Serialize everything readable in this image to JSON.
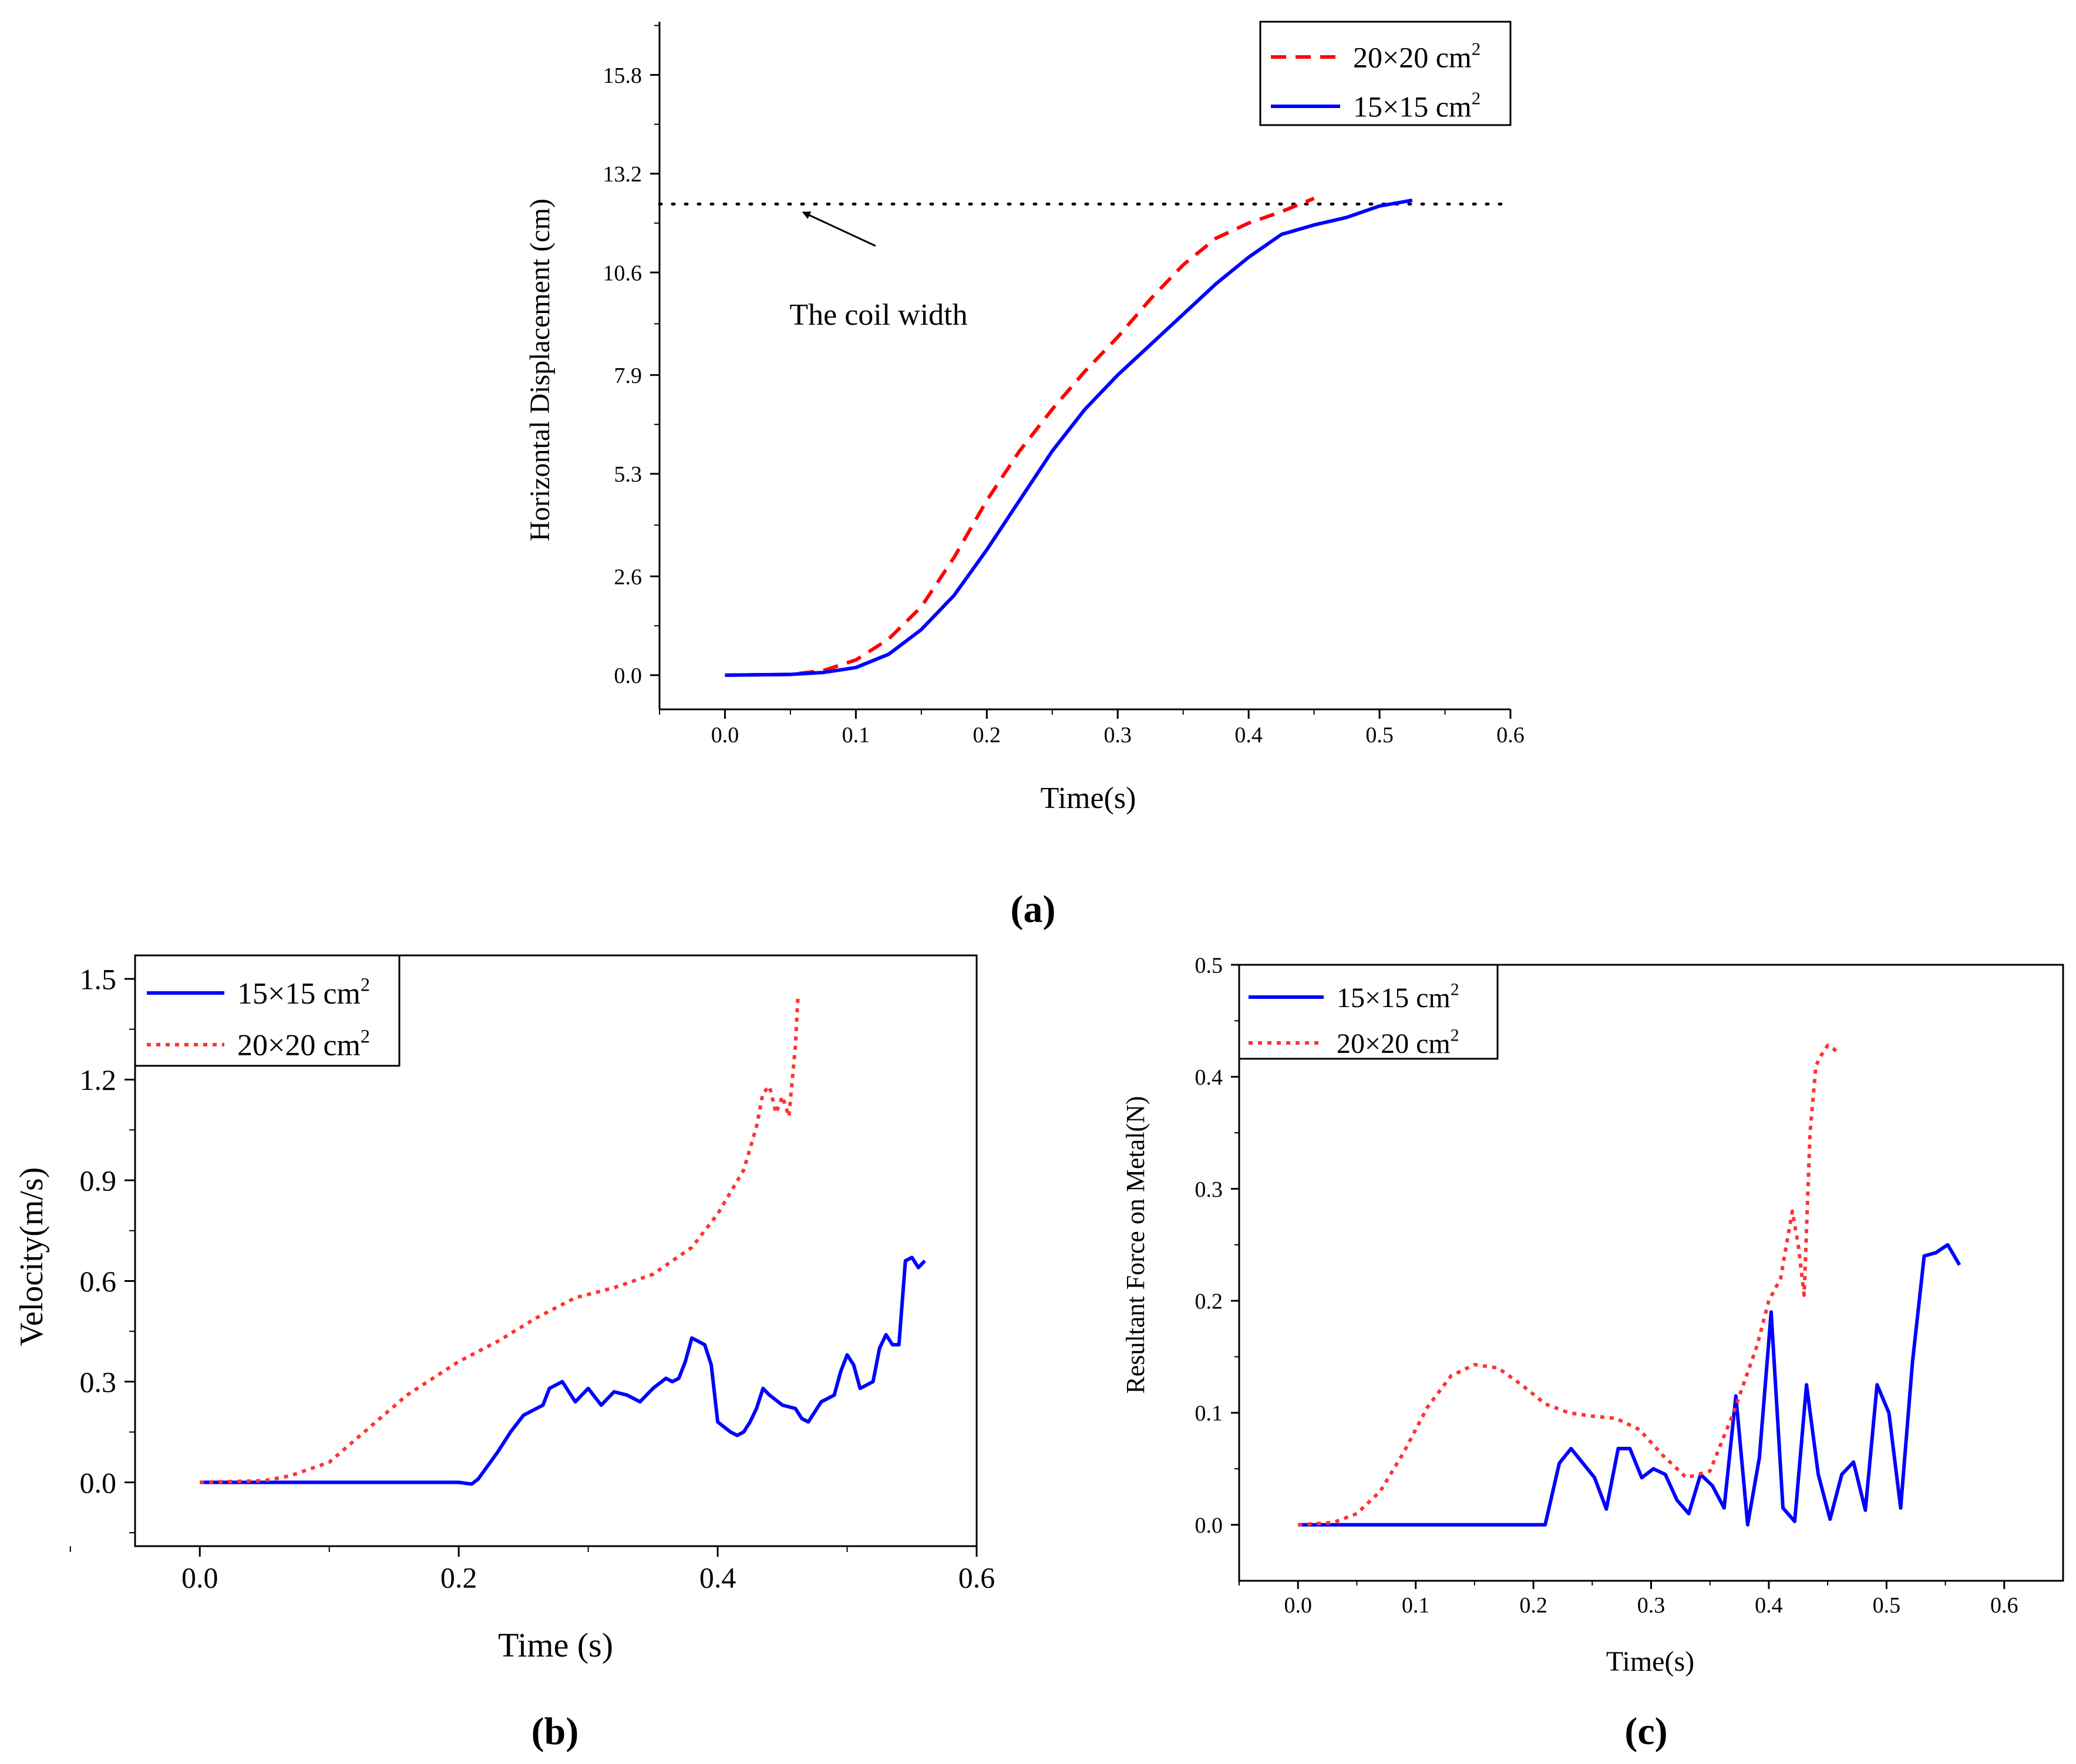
{
  "chart_data": [
    {
      "id": "a",
      "type": "line",
      "panel_label": "a",
      "title": "",
      "xlabel": "Time(s)",
      "ylabel": "Horizontal Displacement (cm)",
      "xlim": [
        -0.05,
        0.6
      ],
      "ylim": [
        -0.9,
        17.2
      ],
      "xticks": [
        0.0,
        0.1,
        0.2,
        0.3,
        0.4,
        0.5,
        0.6
      ],
      "xtick_labels": [
        "0.0",
        "0.1",
        "0.2",
        "0.3",
        "0.4",
        "0.5",
        "0.6"
      ],
      "yticks": [
        0.0,
        2.6,
        5.3,
        7.9,
        10.6,
        13.2,
        15.8
      ],
      "ytick_labels": [
        "0.0",
        "2.6",
        "5.3",
        "7.9",
        "10.6",
        "13.2",
        "15.8"
      ],
      "legend_position": "top-right",
      "series": [
        {
          "name": "20×20 cm",
          "superscript": "2",
          "color": "#ff0000",
          "style": "dashed",
          "x": [
            0.0,
            0.05,
            0.075,
            0.1,
            0.125,
            0.15,
            0.175,
            0.2,
            0.225,
            0.25,
            0.275,
            0.3,
            0.325,
            0.35,
            0.375,
            0.4,
            0.425,
            0.45
          ],
          "y": [
            0.0,
            0.02,
            0.12,
            0.4,
            0.95,
            1.8,
            3.1,
            4.6,
            5.9,
            7.0,
            8.0,
            8.9,
            9.9,
            10.8,
            11.5,
            11.9,
            12.2,
            12.55
          ]
        },
        {
          "name": "15×15 cm",
          "superscript": "2",
          "color": "#0000ff",
          "style": "solid",
          "x": [
            0.0,
            0.05,
            0.075,
            0.1,
            0.125,
            0.15,
            0.175,
            0.2,
            0.225,
            0.25,
            0.275,
            0.3,
            0.325,
            0.35,
            0.375,
            0.4,
            0.425,
            0.45,
            0.475,
            0.5,
            0.525
          ],
          "y": [
            0.0,
            0.02,
            0.07,
            0.2,
            0.55,
            1.2,
            2.1,
            3.3,
            4.6,
            5.9,
            7.0,
            7.9,
            8.7,
            9.5,
            10.3,
            11.0,
            11.6,
            11.85,
            12.05,
            12.35,
            12.5
          ]
        }
      ],
      "reference_line": {
        "y": 12.4,
        "style": "dotted",
        "color": "#000000"
      },
      "annotation": {
        "text": "The coil width",
        "arrow_to": [
          0.057,
          12.4
        ],
        "text_at": [
          0.115,
          11.3
        ]
      }
    },
    {
      "id": "b",
      "type": "line",
      "panel_label": "b",
      "title": "",
      "xlabel": "Time (s)",
      "ylabel": "Velocity(m/s)",
      "xlim": [
        -0.05,
        0.6
      ],
      "ylim": [
        -0.19,
        1.57
      ],
      "xticks": [
        0.0,
        0.2,
        0.4,
        0.6
      ],
      "xtick_labels": [
        "0.0",
        "0.2",
        "0.4",
        "0.6"
      ],
      "yticks": [
        0.0,
        0.3,
        0.6,
        0.9,
        1.2,
        1.5
      ],
      "ytick_labels": [
        "0.0",
        "0.3",
        "0.6",
        "0.9",
        "1.2",
        "1.5"
      ],
      "legend_position": "top-left",
      "series": [
        {
          "name": "15×15 cm",
          "superscript": "2",
          "color": "#0000ff",
          "style": "solid",
          "x": [
            0.0,
            0.1,
            0.2,
            0.21,
            0.215,
            0.23,
            0.24,
            0.25,
            0.26,
            0.265,
            0.27,
            0.28,
            0.29,
            0.3,
            0.31,
            0.32,
            0.33,
            0.34,
            0.345,
            0.35,
            0.36,
            0.365,
            0.37,
            0.375,
            0.38,
            0.39,
            0.395,
            0.4,
            0.41,
            0.415,
            0.42,
            0.425,
            0.43,
            0.435,
            0.44,
            0.45,
            0.46,
            0.465,
            0.47,
            0.48,
            0.49,
            0.495,
            0.5,
            0.505,
            0.51,
            0.52,
            0.525,
            0.53,
            0.535,
            0.54,
            0.545,
            0.55,
            0.555,
            0.56
          ],
          "y": [
            0.0,
            0.0,
            0.0,
            -0.005,
            0.01,
            0.09,
            0.15,
            0.2,
            0.22,
            0.23,
            0.28,
            0.3,
            0.24,
            0.28,
            0.23,
            0.27,
            0.26,
            0.24,
            0.26,
            0.28,
            0.31,
            0.3,
            0.31,
            0.36,
            0.43,
            0.41,
            0.35,
            0.18,
            0.15,
            0.14,
            0.15,
            0.18,
            0.22,
            0.28,
            0.26,
            0.23,
            0.22,
            0.19,
            0.18,
            0.24,
            0.26,
            0.33,
            0.38,
            0.35,
            0.28,
            0.3,
            0.4,
            0.44,
            0.41,
            0.41,
            0.66,
            0.67,
            0.64,
            0.66
          ]
        },
        {
          "name": "20×20 cm",
          "superscript": "2",
          "color": "#ff3333",
          "style": "dotted",
          "x": [
            0.0,
            0.05,
            0.07,
            0.1,
            0.13,
            0.16,
            0.2,
            0.23,
            0.26,
            0.29,
            0.32,
            0.35,
            0.38,
            0.4,
            0.42,
            0.43,
            0.435,
            0.44,
            0.445,
            0.45,
            0.455,
            0.46,
            0.462
          ],
          "y": [
            0.0,
            0.005,
            0.02,
            0.06,
            0.16,
            0.26,
            0.36,
            0.42,
            0.49,
            0.55,
            0.58,
            0.62,
            0.7,
            0.8,
            0.93,
            1.06,
            1.16,
            1.18,
            1.1,
            1.15,
            1.09,
            1.3,
            1.45
          ]
        }
      ]
    },
    {
      "id": "c",
      "type": "line",
      "panel_label": "c",
      "title": "",
      "xlabel": "Time(s)",
      "ylabel": "Resultant Force on Metal(N)",
      "xlim": [
        -0.05,
        0.65
      ],
      "ylim": [
        -0.05,
        0.5
      ],
      "xticks": [
        0.0,
        0.1,
        0.2,
        0.3,
        0.4,
        0.5,
        0.6
      ],
      "xtick_labels": [
        "0.0",
        "0.1",
        "0.2",
        "0.3",
        "0.4",
        "0.5",
        "0.6"
      ],
      "yticks": [
        0.0,
        0.1,
        0.2,
        0.3,
        0.4,
        0.5
      ],
      "ytick_labels": [
        "0.0",
        "0.1",
        "0.2",
        "0.3",
        "0.4",
        "0.5"
      ],
      "legend_position": "top-left",
      "series": [
        {
          "name": "15×15 cm",
          "superscript": "2",
          "color": "#0000ff",
          "style": "solid",
          "x": [
            0.0,
            0.1,
            0.21,
            0.222,
            0.232,
            0.242,
            0.252,
            0.262,
            0.272,
            0.282,
            0.292,
            0.302,
            0.312,
            0.322,
            0.332,
            0.342,
            0.352,
            0.362,
            0.372,
            0.382,
            0.392,
            0.402,
            0.412,
            0.422,
            0.432,
            0.442,
            0.452,
            0.462,
            0.472,
            0.482,
            0.492,
            0.502,
            0.512,
            0.522,
            0.532,
            0.542,
            0.552,
            0.562
          ],
          "y": [
            0.0,
            0.0,
            0.0,
            0.055,
            0.068,
            0.055,
            0.042,
            0.014,
            0.068,
            0.068,
            0.042,
            0.05,
            0.045,
            0.022,
            0.01,
            0.045,
            0.035,
            0.015,
            0.115,
            0.0,
            0.06,
            0.19,
            0.015,
            0.003,
            0.125,
            0.045,
            0.005,
            0.045,
            0.056,
            0.013,
            0.125,
            0.1,
            0.015,
            0.145,
            0.24,
            0.243,
            0.25,
            0.232
          ]
        },
        {
          "name": "20×20 cm",
          "superscript": "2",
          "color": "#ff3333",
          "style": "dotted",
          "x": [
            0.0,
            0.03,
            0.05,
            0.07,
            0.09,
            0.11,
            0.13,
            0.15,
            0.17,
            0.19,
            0.21,
            0.23,
            0.25,
            0.27,
            0.29,
            0.31,
            0.33,
            0.35,
            0.37,
            0.39,
            0.4,
            0.41,
            0.42,
            0.425,
            0.43,
            0.435,
            0.44,
            0.445,
            0.45,
            0.455,
            0.46
          ],
          "y": [
            0.0,
            0.002,
            0.01,
            0.03,
            0.065,
            0.105,
            0.133,
            0.143,
            0.14,
            0.125,
            0.108,
            0.1,
            0.097,
            0.095,
            0.085,
            0.062,
            0.042,
            0.048,
            0.1,
            0.16,
            0.2,
            0.22,
            0.28,
            0.25,
            0.205,
            0.35,
            0.41,
            0.42,
            0.428,
            0.425,
            0.42
          ]
        }
      ]
    }
  ]
}
